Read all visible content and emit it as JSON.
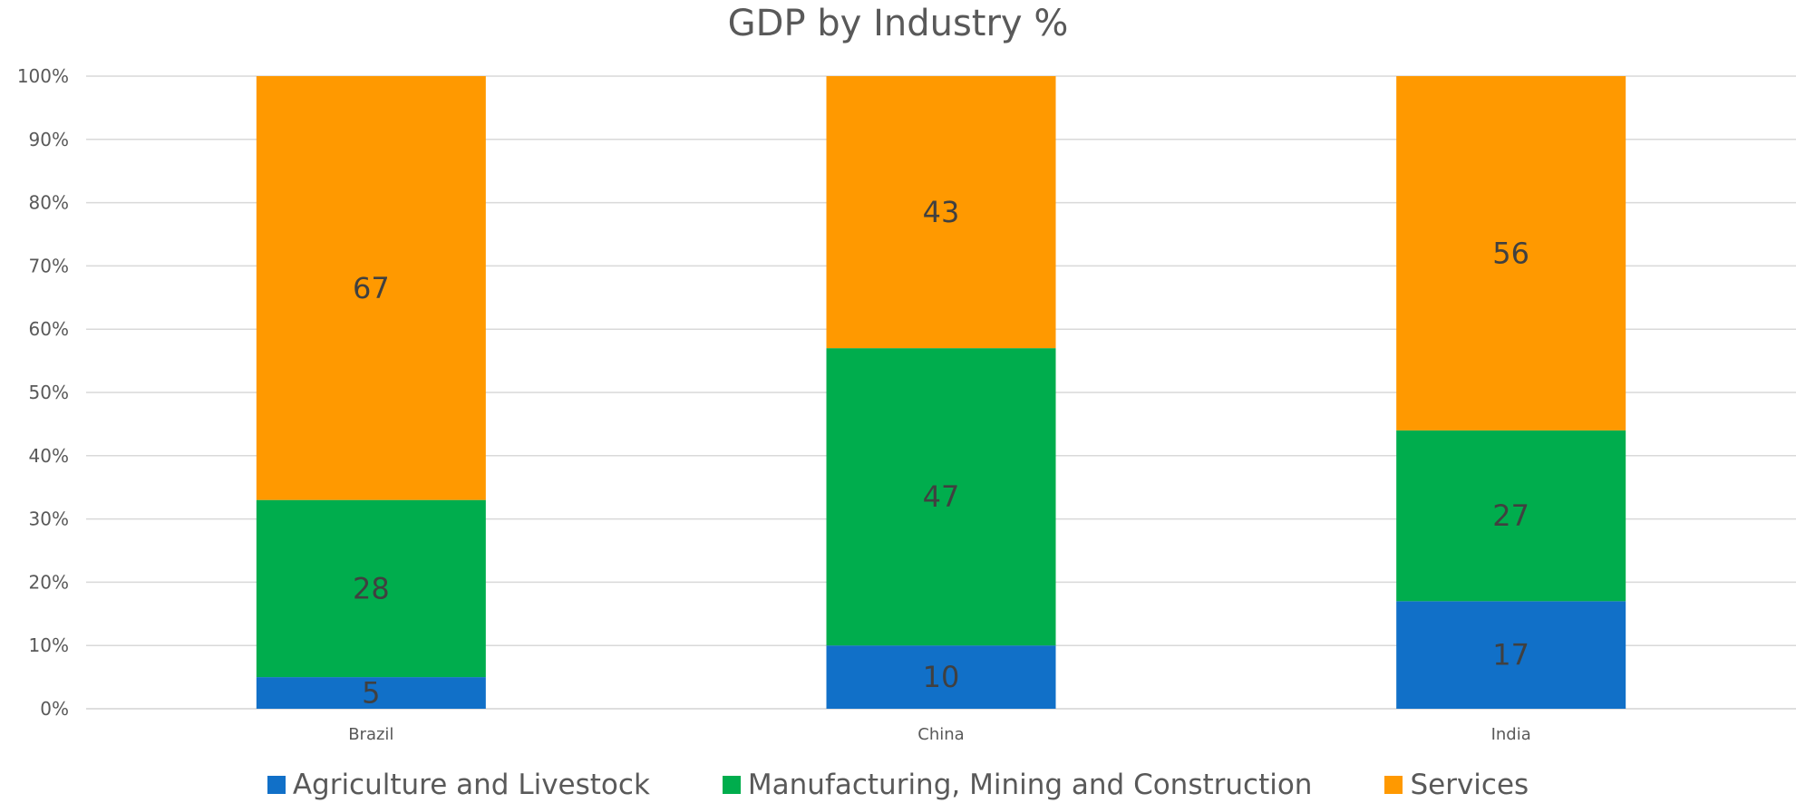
{
  "chart_data": {
    "type": "bar",
    "stacked": true,
    "title": "GDP by Industry %",
    "xlabel": "",
    "ylabel": "",
    "ylim": [
      0,
      100
    ],
    "y_ticks": [
      "0%",
      "10%",
      "20%",
      "30%",
      "40%",
      "50%",
      "60%",
      "70%",
      "80%",
      "90%",
      "100%"
    ],
    "categories": [
      "Brazil",
      "China",
      "India"
    ],
    "series": [
      {
        "name": "Agriculture and Livestock",
        "color": "#1170C8",
        "values": [
          5,
          10,
          17
        ]
      },
      {
        "name": "Manufacturing, Mining and Construction",
        "color": "#00AD4D",
        "values": [
          28,
          47,
          27
        ]
      },
      {
        "name": "Services",
        "color": "#FF9900",
        "values": [
          67,
          43,
          56
        ]
      }
    ],
    "grid": true,
    "legend_position": "bottom",
    "gridline_color": "#D9D9D9"
  }
}
